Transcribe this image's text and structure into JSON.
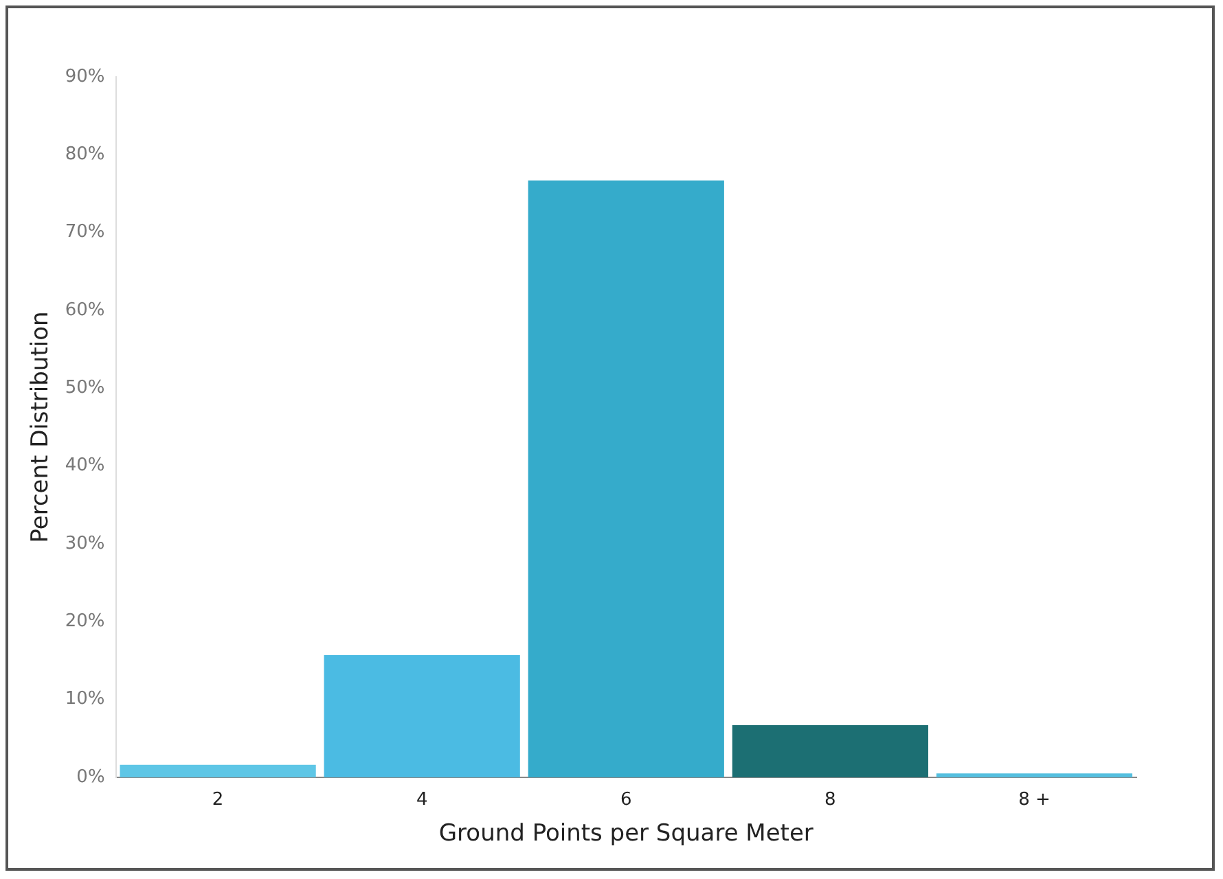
{
  "chart_data": {
    "type": "bar",
    "xlabel": "Ground Points per Square Meter",
    "ylabel": "Percent Distribution",
    "categories": [
      "2",
      "4",
      "6",
      "8",
      "8 +"
    ],
    "values": [
      1.6,
      15.7,
      76.7,
      6.7,
      0.5
    ],
    "colors": [
      "#5ec6e6",
      "#4bbbe3",
      "#35abcb",
      "#1c6f73",
      "#55bfdf"
    ],
    "ylim": [
      0,
      90
    ],
    "yticks": [
      {
        "value": 0,
        "label": "0%"
      },
      {
        "value": 10,
        "label": "10%"
      },
      {
        "value": 20,
        "label": "20%"
      },
      {
        "value": 30,
        "label": "30%"
      },
      {
        "value": 40,
        "label": "40%"
      },
      {
        "value": 50,
        "label": "50%"
      },
      {
        "value": 60,
        "label": "60%"
      },
      {
        "value": 70,
        "label": "70%"
      },
      {
        "value": 80,
        "label": "80%"
      },
      {
        "value": 90,
        "label": "90%"
      }
    ],
    "grid": false,
    "legend": false
  }
}
